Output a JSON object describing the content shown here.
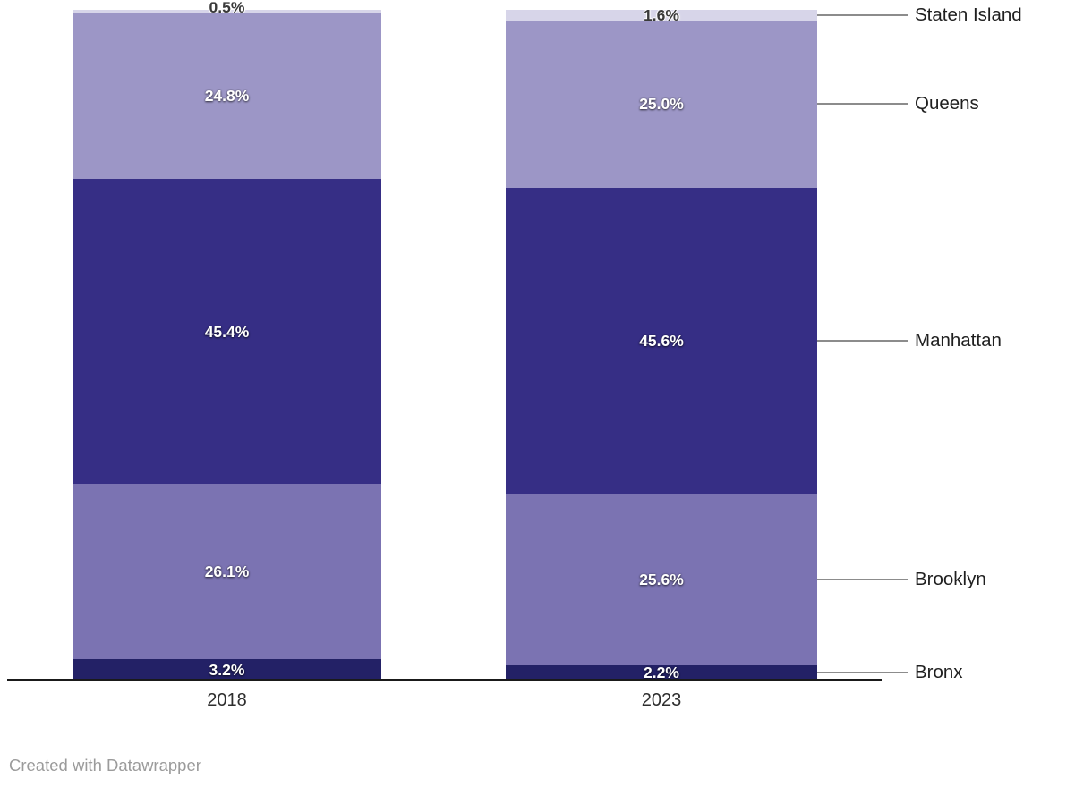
{
  "chart_data": {
    "type": "bar",
    "variant": "stacked-column",
    "title": "",
    "categories": [
      "2018",
      "2023"
    ],
    "series": [
      {
        "name": "Staten Island",
        "color": "#d7d5e9",
        "values": [
          0.5,
          1.6
        ],
        "labels": [
          "0.5%",
          "1.6%"
        ],
        "label_style": "dark"
      },
      {
        "name": "Queens",
        "color": "#9c96c6",
        "values": [
          24.8,
          25.0
        ],
        "labels": [
          "24.8%",
          "25.0%"
        ],
        "label_style": "light"
      },
      {
        "name": "Manhattan",
        "color": "#362e85",
        "values": [
          45.4,
          45.6
        ],
        "labels": [
          "45.4%",
          "45.6%"
        ],
        "label_style": "light"
      },
      {
        "name": "Brooklyn",
        "color": "#7b73b2",
        "values": [
          26.1,
          25.6
        ],
        "labels": [
          "26.1%",
          "25.6%"
        ],
        "label_style": "light"
      },
      {
        "name": "Bronx",
        "color": "#232166",
        "values": [
          3.2,
          2.2
        ],
        "labels": [
          "3.2%",
          "2.2%"
        ],
        "label_style": "light"
      }
    ],
    "unit": "%",
    "ylim": [
      0,
      100
    ],
    "grid": false,
    "legend_position": "right-connector-labels",
    "axis_color": "#1a1a1a",
    "connector_color": "#8c8c8c"
  },
  "footer": {
    "attribution": "Created with Datawrapper"
  }
}
